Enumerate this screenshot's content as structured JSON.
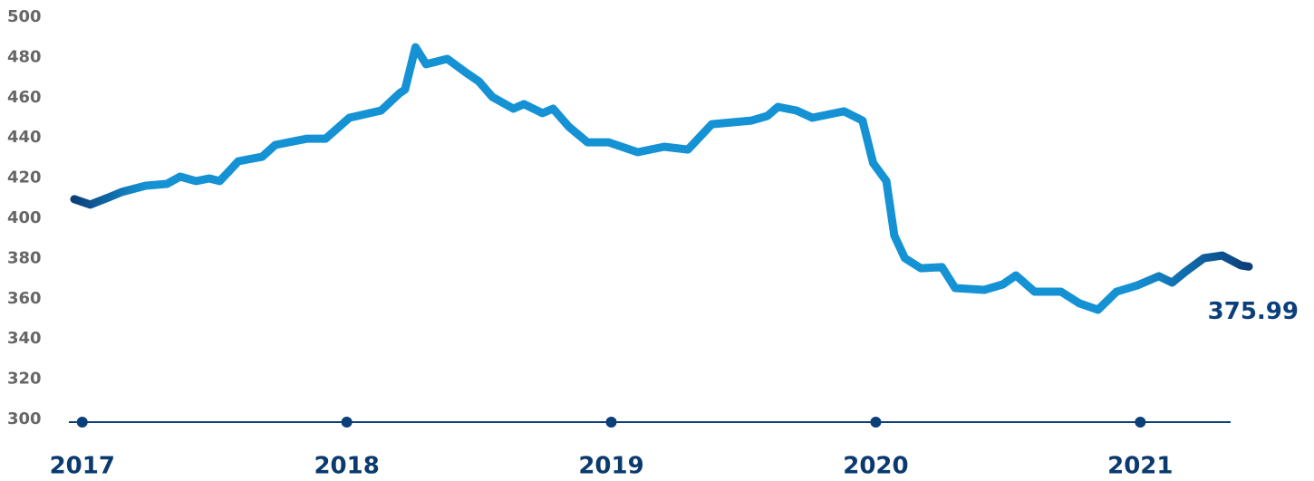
{
  "chart_data": {
    "type": "line",
    "xlim": [
      2016.97,
      2021.41
    ],
    "xticks": [
      2017,
      2018,
      2019,
      2020,
      2021
    ],
    "ylim": [
      300,
      500
    ],
    "yticks": [
      300,
      320,
      340,
      360,
      380,
      400,
      420,
      440,
      460,
      480,
      500
    ],
    "series": [
      {
        "colors": [
          "#0b3f7a",
          "#1592d4",
          "#1592d4",
          "#0b3f7a"
        ],
        "x": [
          2016.97,
          2017.03,
          2017.1,
          2017.15,
          2017.24,
          2017.32,
          2017.37,
          2017.43,
          2017.48,
          2017.52,
          2017.59,
          2017.68,
          2017.73,
          2017.85,
          2017.92,
          2018.01,
          2018.13,
          2018.2,
          2018.22,
          2018.26,
          2018.3,
          2018.38,
          2018.45,
          2018.5,
          2018.55,
          2018.63,
          2018.67,
          2018.74,
          2018.78,
          2018.84,
          2018.91,
          2018.99,
          2019.1,
          2019.2,
          2019.29,
          2019.38,
          2019.53,
          2019.59,
          2019.63,
          2019.7,
          2019.76,
          2019.88,
          2019.95,
          2019.99,
          2020.04,
          2020.07,
          2020.11,
          2020.17,
          2020.25,
          2020.3,
          2020.41,
          2020.48,
          2020.53,
          2020.6,
          2020.7,
          2020.77,
          2020.84,
          2020.91,
          2020.99,
          2021.07,
          2021.12,
          2021.17,
          2021.24,
          2021.31,
          2021.38,
          2021.41
        ],
        "values": [
          409.5,
          406.8,
          410.4,
          413.1,
          416.2,
          417.1,
          420.7,
          418.5,
          419.8,
          418.5,
          428.4,
          430.6,
          436.5,
          439.6,
          439.6,
          450.0,
          453.6,
          462.2,
          464.0,
          485.1,
          476.6,
          479.3,
          472.5,
          468.0,
          460.4,
          454.5,
          456.8,
          452.3,
          454.5,
          445.5,
          437.8,
          437.8,
          432.9,
          435.6,
          434.2,
          446.8,
          448.6,
          450.9,
          455.4,
          453.6,
          450.0,
          453.2,
          448.6,
          427.5,
          418.5,
          391.4,
          380.2,
          375.2,
          375.7,
          365.3,
          364.4,
          367.1,
          371.6,
          363.5,
          363.5,
          357.7,
          354.5,
          363.5,
          366.7,
          371.2,
          368.0,
          373.4,
          380.2,
          381.5,
          376.6,
          375.99
        ],
        "value_labels": {
          "65": "375.99"
        }
      }
    ]
  }
}
